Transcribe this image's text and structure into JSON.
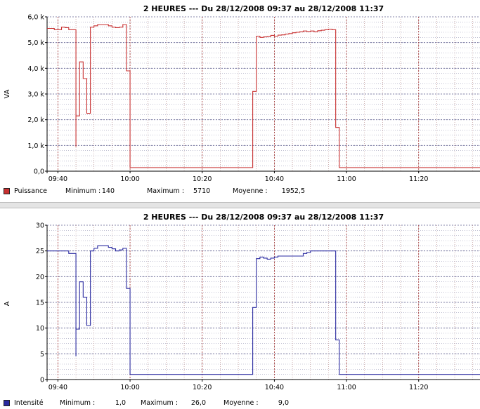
{
  "colors": {
    "puissance": "#c83030",
    "intensite": "#2a2aa0",
    "vgrid": "#a03030",
    "hgrid": "#8080a0"
  },
  "chart_data": [
    {
      "type": "line",
      "step": true,
      "title": "2 HEURES --- Du 28/12/2008 09:37 au 28/12/2008 11:37",
      "ylabel": "VA",
      "ylim": [
        0,
        6000
      ],
      "yticks": [
        "0,0",
        "1,0 k",
        "2,0 k",
        "3,0 k",
        "4,0 k",
        "5,0 k",
        "6,0 k"
      ],
      "xlim": [
        "09:37",
        "11:37"
      ],
      "xticks": [
        "09:40",
        "10:00",
        "10:20",
        "10:40",
        "11:00",
        "11:20"
      ],
      "grid": true,
      "legend_position": "bottom-left",
      "series": [
        {
          "name": "Puissance",
          "x": [
            "09:37",
            "09:39",
            "09:41",
            "09:42",
            "09:43",
            "09:45",
            "09:45",
            "09:46",
            "09:47",
            "09:48",
            "09:49",
            "09:50",
            "09:51",
            "09:52",
            "09:54",
            "09:55",
            "09:56",
            "09:57",
            "09:58",
            "09:59",
            "10:00",
            "10:01",
            "10:02",
            "10:34",
            "10:35",
            "10:36",
            "10:37",
            "10:38",
            "10:39",
            "10:40",
            "10:41",
            "10:42",
            "10:43",
            "10:44",
            "10:45",
            "10:46",
            "10:47",
            "10:48",
            "10:49",
            "10:50",
            "10:51",
            "10:52",
            "10:53",
            "10:54",
            "10:55",
            "10:56",
            "10:57",
            "10:58",
            "10:59",
            "11:00",
            "11:37"
          ],
          "y": [
            5550,
            5500,
            5600,
            5580,
            5500,
            950,
            2150,
            4250,
            3600,
            2250,
            5600,
            5650,
            5700,
            5700,
            5650,
            5600,
            5580,
            5600,
            5700,
            3900,
            140,
            140,
            140,
            3100,
            5250,
            5200,
            5220,
            5230,
            5280,
            5250,
            5290,
            5300,
            5330,
            5350,
            5380,
            5400,
            5420,
            5450,
            5430,
            5450,
            5420,
            5460,
            5480,
            5500,
            5520,
            5500,
            1700,
            140,
            140,
            140,
            140
          ],
          "min_label": "Minimum :",
          "min": "140",
          "max_label": "Maximum :",
          "max": "5710",
          "avg_label": "Moyenne :",
          "avg": "1952,5"
        }
      ]
    },
    {
      "type": "line",
      "step": true,
      "title": "2 HEURES --- Du 28/12/2008 09:37 au 28/12/2008 11:37",
      "ylabel": "A",
      "ylim": [
        0,
        30
      ],
      "yticks": [
        "0",
        "5",
        "10",
        "15",
        "20",
        "25",
        "30"
      ],
      "xlim": [
        "09:37",
        "11:37"
      ],
      "xticks": [
        "09:40",
        "10:00",
        "10:20",
        "10:40",
        "11:00",
        "11:20"
      ],
      "grid": true,
      "legend_position": "bottom-left",
      "series": [
        {
          "name": "Intensité",
          "x": [
            "09:37",
            "09:39",
            "09:41",
            "09:42",
            "09:43",
            "09:45",
            "09:45",
            "09:46",
            "09:47",
            "09:48",
            "09:49",
            "09:50",
            "09:51",
            "09:52",
            "09:54",
            "09:55",
            "09:56",
            "09:57",
            "09:58",
            "09:59",
            "10:00",
            "10:01",
            "10:02",
            "10:34",
            "10:35",
            "10:36",
            "10:37",
            "10:38",
            "10:39",
            "10:40",
            "10:41",
            "10:42",
            "10:43",
            "10:44",
            "10:45",
            "10:46",
            "10:47",
            "10:48",
            "10:49",
            "10:50",
            "10:51",
            "10:52",
            "10:53",
            "10:54",
            "10:55",
            "10:56",
            "10:57",
            "10:58",
            "10:59",
            "11:00",
            "11:37"
          ],
          "y": [
            25,
            25,
            25,
            25,
            24.5,
            4.5,
            9.8,
            19,
            16,
            10.5,
            25,
            25.5,
            26,
            26,
            25.7,
            25.4,
            25,
            25.2,
            25.5,
            17.7,
            1,
            1,
            1,
            14,
            23.5,
            23.8,
            23.6,
            23.4,
            23.6,
            23.8,
            24,
            24,
            24,
            24,
            24,
            24,
            24,
            24.5,
            24.7,
            25,
            25,
            25,
            25,
            25,
            25,
            25,
            7.7,
            1,
            1,
            1,
            1
          ],
          "min_label": "Minimum :",
          "min": "1,0",
          "max_label": "Maximum :",
          "max": "26,0",
          "avg_label": "Moyenne :",
          "avg": "9,0"
        }
      ]
    }
  ]
}
